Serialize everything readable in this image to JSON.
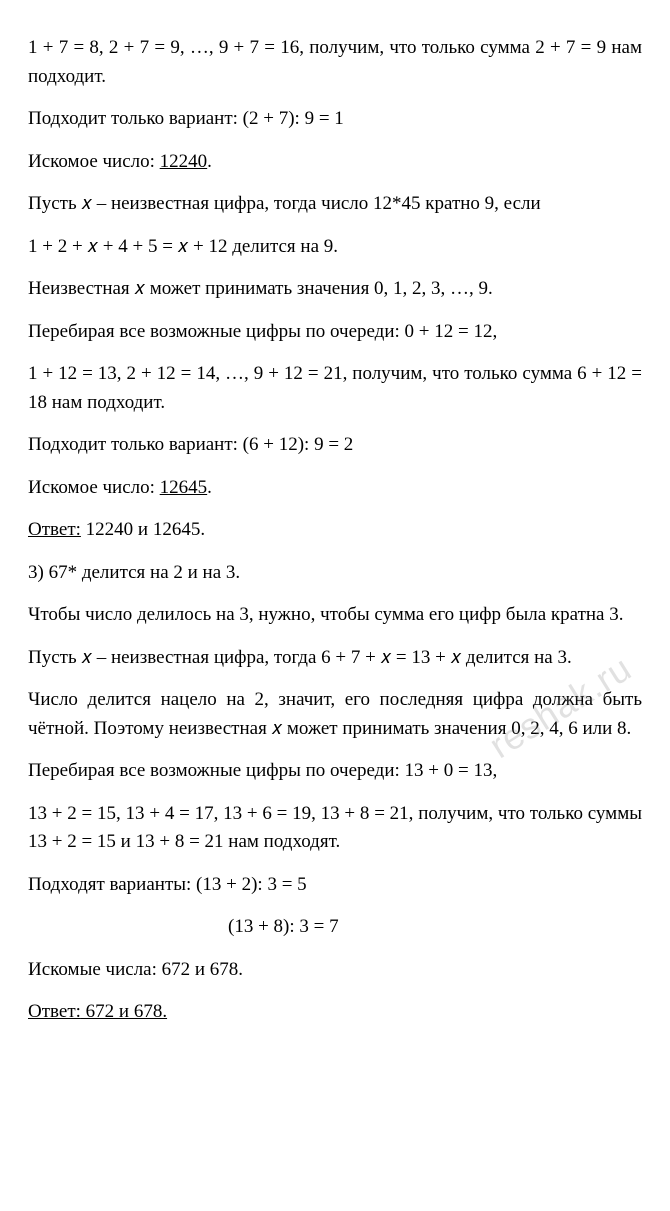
{
  "p1": "1 + 7 = 8, 2 + 7 = 9, …, 9 + 7 = 16, получим, что только сумма 2 + 7 = 9 нам подходит.",
  "p2": "Подходит только вариант:  (2 + 7): 9 = 1",
  "p3_prefix": "Искомое число: ",
  "p3_num": "12240",
  "p3_suffix": ".",
  "p4": "Пусть 𝑥 – неизвестная цифра, тогда число 12*45 кратно 9, если",
  "p5": "1 + 2 + 𝑥 + 4 + 5 = 𝑥 + 12 делится на 9.",
  "p6": "Неизвестная 𝑥 может принимать значения 0, 1, 2, 3, …, 9.",
  "p7": "Перебирая все возможные цифры по очереди: 0 + 12 = 12,",
  "p8": "1 + 12 = 13, 2 + 12 = 14, …, 9 + 12 = 21, получим, что только сумма 6 + 12 = 18 нам подходит.",
  "p9": "Подходит только вариант:  (6 + 12): 9 = 2",
  "p10_prefix": "Искомое число: ",
  "p10_num": "12645",
  "p10_suffix": ".",
  "p11_label": "Ответ:",
  "p11_rest": " 12240 и 12645.",
  "p12": "3) 67* делится на 2 и на 3.",
  "p13": "Чтобы число делилось на 3, нужно, чтобы сумма его цифр была кратна 3.",
  "p14": "Пусть 𝑥 – неизвестная цифра, тогда 6 + 7 + 𝑥 = 13 + 𝑥 делится на 3.",
  "p15": "Число делится нацело на 2, значит, его последняя цифра должна быть чётной. Поэтому неизвестная 𝑥 может принимать значения 0, 2, 4, 6 или 8.",
  "p16": "Перебирая все возможные цифры по очереди: 13 + 0 = 13,",
  "p17": "13 + 2 = 15, 13 + 4 = 17, 13 + 6 = 19, 13 + 8 = 21, получим, что только суммы  13 + 2 = 15  и  13 + 8 = 21 нам подходят.",
  "p18": "Подходят варианты:  (13 + 2): 3 = 5",
  "p18b": "(13 + 8): 3 = 7",
  "p19": "Искомые числа: 672 и 678.",
  "p20_label": "Ответ:",
  "p20_rest": " 672 и 678.",
  "watermark": "reshak.ru"
}
